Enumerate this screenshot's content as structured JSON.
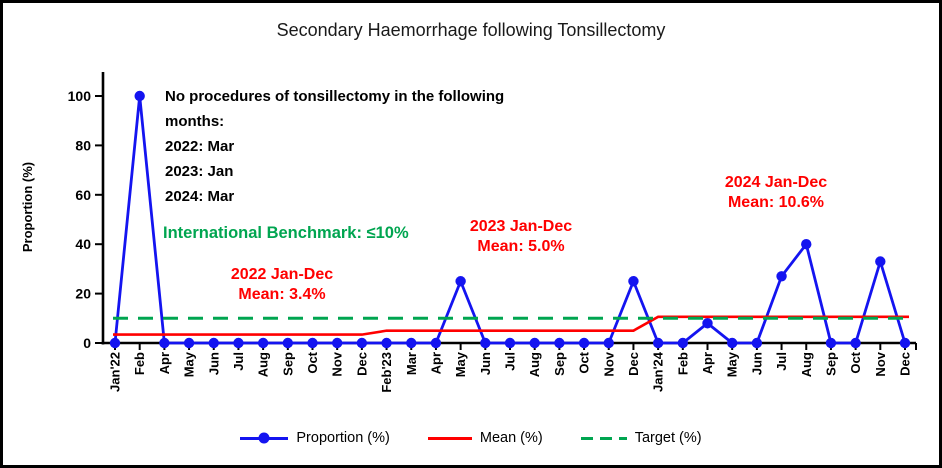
{
  "title": "Secondary Haemorrhage following Tonsillectomy",
  "y_axis": {
    "label": "Proportion (%)",
    "ticks": [
      0,
      20,
      40,
      60,
      80,
      100
    ]
  },
  "annotations": {
    "no_procedures": [
      "No procedures of tonsillectomy in the following",
      "months:",
      "2022: Mar",
      "2023: Jan",
      "2024: Mar"
    ],
    "benchmark": "International Benchmark: ≤10%",
    "mean_2022": [
      "2022 Jan-Dec",
      "Mean: 3.4%"
    ],
    "mean_2023": [
      "2023 Jan-Dec",
      "Mean: 5.0%"
    ],
    "mean_2024": [
      "2024 Jan-Dec",
      "Mean: 10.6%"
    ]
  },
  "legend": {
    "items": [
      {
        "label": "Proportion (%)",
        "marker": "line-with-dot",
        "color": "#1414F0"
      },
      {
        "label": "Mean (%)",
        "marker": "solid-line",
        "color": "#FF0000"
      },
      {
        "label": "Target (%)",
        "marker": "dashed-line",
        "color": "#00A550"
      }
    ]
  },
  "colors": {
    "proportion": "#1414F0",
    "mean": "#FF0000",
    "target": "#00A550",
    "axis": "#000000",
    "title_text": "#1a1a1a"
  },
  "chart_data": {
    "type": "line",
    "title": "Secondary Haemorrhage following Tonsillectomy",
    "xlabel": "",
    "ylabel": "Proportion (%)",
    "ylim": [
      0,
      100
    ],
    "yticks": [
      0,
      20,
      40,
      60,
      80,
      100
    ],
    "grid": false,
    "legend_position": "bottom",
    "categories": [
      "Jan'22",
      "Feb",
      "Apr",
      "May",
      "Jun",
      "Jul",
      "Aug",
      "Sep",
      "Oct",
      "Nov",
      "Dec",
      "Feb'23",
      "Mar",
      "Apr",
      "May",
      "Jun",
      "Jul",
      "Aug",
      "Sep",
      "Oct",
      "Nov",
      "Dec",
      "Jan'24",
      "Feb",
      "Apr",
      "May",
      "Jun",
      "Jul",
      "Aug",
      "Sep",
      "Oct",
      "Nov",
      "Dec"
    ],
    "series": [
      {
        "name": "Proportion (%)",
        "type": "line-marker",
        "color": "#1414F0",
        "values": [
          0,
          100,
          0,
          0,
          0,
          0,
          0,
          0,
          0,
          0,
          0,
          0,
          0,
          0,
          25,
          0,
          0,
          0,
          0,
          0,
          0,
          25,
          0,
          0,
          8,
          0,
          0,
          27,
          40,
          0,
          0,
          33,
          0
        ]
      },
      {
        "name": "Mean (%)",
        "type": "step-line",
        "color": "#FF0000",
        "segments": [
          {
            "start_index": 0,
            "end_index": 10,
            "value": 3.4
          },
          {
            "start_index": 11,
            "end_index": 21,
            "value": 5.0
          },
          {
            "start_index": 22,
            "end_index": 32,
            "value": 10.6
          }
        ]
      },
      {
        "name": "Target (%)",
        "type": "dashed-line",
        "color": "#00A550",
        "value": 10
      }
    ]
  }
}
